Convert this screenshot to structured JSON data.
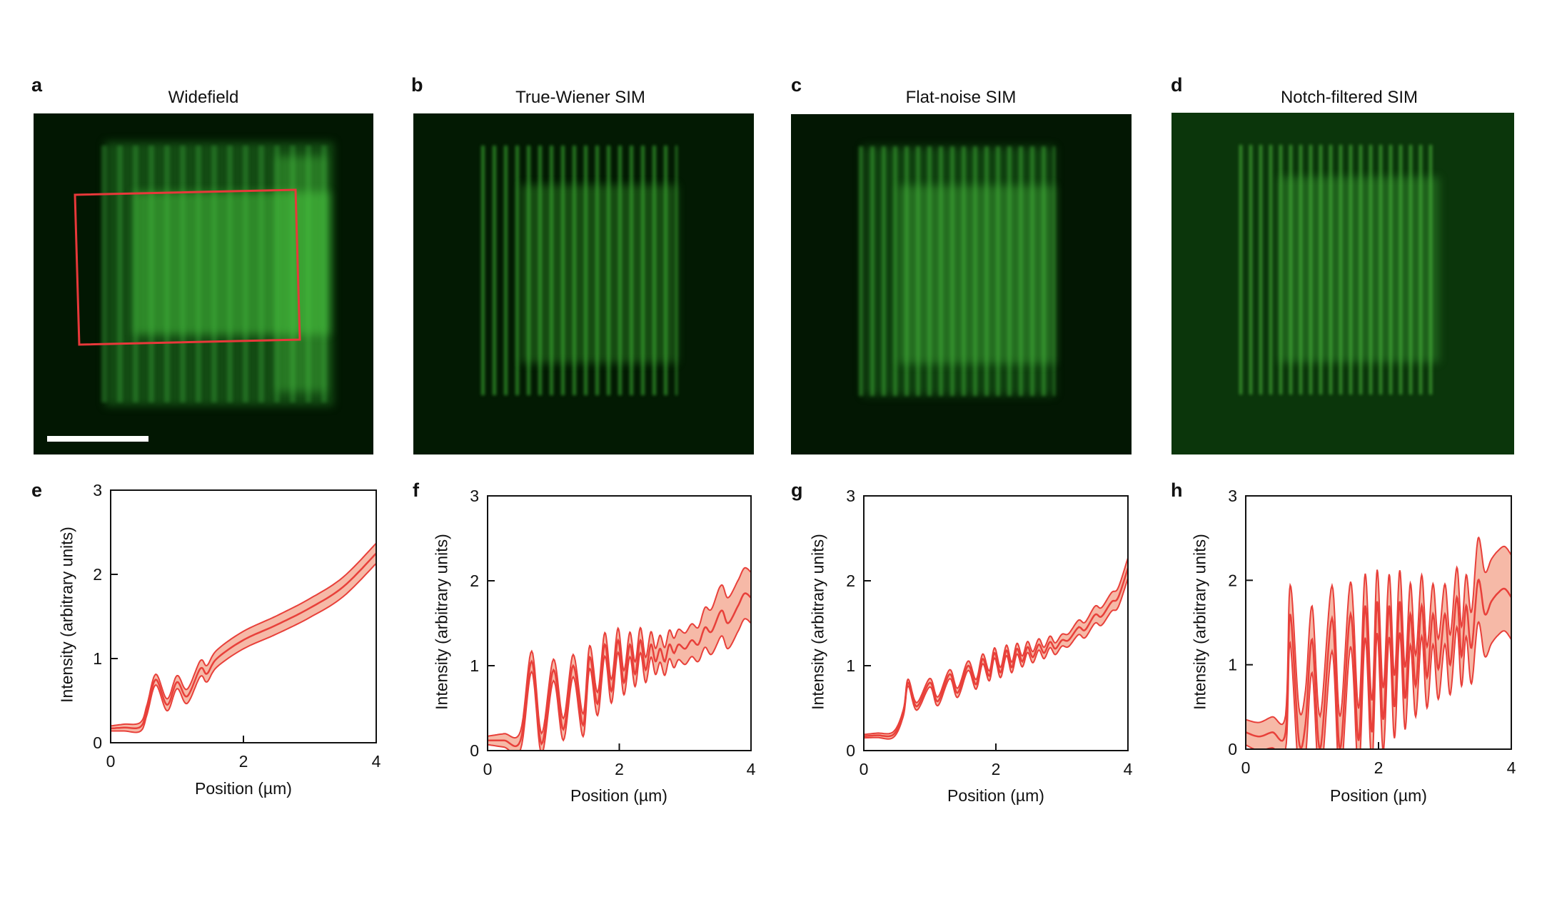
{
  "panels": [
    {
      "letter": "a",
      "title": "Widefield"
    },
    {
      "letter": "b",
      "title": "True-Wiener SIM"
    },
    {
      "letter": "c",
      "title": "Flat-noise SIM"
    },
    {
      "letter": "d",
      "title": "Notch-filtered SIM"
    }
  ],
  "colors": {
    "line": "#e8403a",
    "band": "#f6b9a7",
    "roi": "#e8383a",
    "signal": "#3fcf3a"
  },
  "chart_data": [
    {
      "letter": "e",
      "type": "line",
      "xlabel": "Position (µm)",
      "ylabel": "Intensity (arbitrary units)",
      "xlim": [
        0,
        4
      ],
      "ylim": [
        0,
        3
      ],
      "xticks": [
        "0",
        "2",
        "4"
      ],
      "yticks": [
        "0",
        "1",
        "2",
        "3"
      ],
      "grid": false,
      "mean": [
        [
          0,
          0.17
        ],
        [
          0.2,
          0.18
        ],
        [
          0.45,
          0.19
        ],
        [
          0.55,
          0.4
        ],
        [
          0.68,
          0.75
        ],
        [
          0.85,
          0.45
        ],
        [
          1.0,
          0.72
        ],
        [
          1.15,
          0.55
        ],
        [
          1.35,
          0.88
        ],
        [
          1.45,
          0.82
        ],
        [
          1.6,
          1.0
        ],
        [
          2.0,
          1.22
        ],
        [
          2.5,
          1.4
        ],
        [
          3.0,
          1.6
        ],
        [
          3.5,
          1.85
        ],
        [
          4.0,
          2.25
        ]
      ],
      "band": [
        [
          0,
          0.03
        ],
        [
          0.6,
          0.06
        ],
        [
          1.5,
          0.1
        ],
        [
          4,
          0.12
        ]
      ]
    },
    {
      "letter": "f",
      "type": "line",
      "xlabel": "Position (µm)",
      "ylabel": "Intensity (arbitrary units)",
      "xlim": [
        0,
        4
      ],
      "ylim": [
        0,
        3
      ],
      "xticks": [
        "0",
        "2",
        "4"
      ],
      "yticks": [
        "0",
        "1",
        "2",
        "3"
      ],
      "grid": false,
      "mean": [
        [
          0,
          0.12
        ],
        [
          0.25,
          0.12
        ],
        [
          0.5,
          0.12
        ],
        [
          0.67,
          1.05
        ],
        [
          0.82,
          0.08
        ],
        [
          1.0,
          0.95
        ],
        [
          1.15,
          0.25
        ],
        [
          1.3,
          1.0
        ],
        [
          1.45,
          0.3
        ],
        [
          1.55,
          1.1
        ],
        [
          1.67,
          0.55
        ],
        [
          1.78,
          1.25
        ],
        [
          1.88,
          0.7
        ],
        [
          1.98,
          1.3
        ],
        [
          2.07,
          0.8
        ],
        [
          2.16,
          1.25
        ],
        [
          2.24,
          0.9
        ],
        [
          2.32,
          1.3
        ],
        [
          2.4,
          0.95
        ],
        [
          2.48,
          1.25
        ],
        [
          2.55,
          1.05
        ],
        [
          2.62,
          1.2
        ],
        [
          2.69,
          1.05
        ],
        [
          2.76,
          1.25
        ],
        [
          2.83,
          1.15
        ],
        [
          2.9,
          1.25
        ],
        [
          3.0,
          1.2
        ],
        [
          3.1,
          1.3
        ],
        [
          3.2,
          1.25
        ],
        [
          3.3,
          1.45
        ],
        [
          3.4,
          1.4
        ],
        [
          3.55,
          1.65
        ],
        [
          3.65,
          1.5
        ],
        [
          3.8,
          1.7
        ],
        [
          3.9,
          1.85
        ],
        [
          4.0,
          1.8
        ]
      ],
      "band": [
        [
          0,
          0.05
        ],
        [
          0.6,
          0.12
        ],
        [
          2.5,
          0.15
        ],
        [
          3.2,
          0.2
        ],
        [
          3.5,
          0.3
        ],
        [
          4,
          0.3
        ]
      ]
    },
    {
      "letter": "g",
      "type": "line",
      "xlabel": "Position (µm)",
      "ylabel": "Intensity (arbitrary units)",
      "xlim": [
        0,
        4
      ],
      "ylim": [
        0,
        3
      ],
      "xticks": [
        "0",
        "2",
        "4"
      ],
      "yticks": [
        "0",
        "1",
        "2",
        "3"
      ],
      "grid": false,
      "mean": [
        [
          0,
          0.17
        ],
        [
          0.2,
          0.18
        ],
        [
          0.45,
          0.19
        ],
        [
          0.6,
          0.45
        ],
        [
          0.67,
          0.8
        ],
        [
          0.8,
          0.52
        ],
        [
          1.0,
          0.8
        ],
        [
          1.12,
          0.58
        ],
        [
          1.3,
          0.9
        ],
        [
          1.42,
          0.68
        ],
        [
          1.58,
          1.0
        ],
        [
          1.7,
          0.78
        ],
        [
          1.8,
          1.08
        ],
        [
          1.9,
          0.88
        ],
        [
          1.98,
          1.15
        ],
        [
          2.07,
          0.92
        ],
        [
          2.16,
          1.18
        ],
        [
          2.24,
          0.98
        ],
        [
          2.32,
          1.2
        ],
        [
          2.4,
          1.05
        ],
        [
          2.48,
          1.22
        ],
        [
          2.56,
          1.1
        ],
        [
          2.65,
          1.25
        ],
        [
          2.73,
          1.15
        ],
        [
          2.82,
          1.28
        ],
        [
          2.9,
          1.2
        ],
        [
          3.0,
          1.3
        ],
        [
          3.1,
          1.3
        ],
        [
          3.25,
          1.45
        ],
        [
          3.35,
          1.42
        ],
        [
          3.5,
          1.6
        ],
        [
          3.6,
          1.58
        ],
        [
          3.75,
          1.75
        ],
        [
          3.85,
          1.8
        ],
        [
          4.0,
          2.15
        ]
      ],
      "band": [
        [
          0,
          0.02
        ],
        [
          1,
          0.05
        ],
        [
          3,
          0.07
        ],
        [
          3.5,
          0.1
        ],
        [
          4,
          0.12
        ]
      ]
    },
    {
      "letter": "h",
      "type": "line",
      "xlabel": "Position (µm)",
      "ylabel": "Intensity (arbitrary units)",
      "xlim": [
        0,
        4
      ],
      "ylim": [
        0,
        3
      ],
      "xticks": [
        "0",
        "2",
        "4"
      ],
      "yticks": [
        "0",
        "1",
        "2",
        "3"
      ],
      "grid": false,
      "mean": [
        [
          0,
          0.2
        ],
        [
          0.2,
          0.15
        ],
        [
          0.4,
          0.2
        ],
        [
          0.6,
          0.2
        ],
        [
          0.67,
          1.6
        ],
        [
          0.8,
          0.1
        ],
        [
          0.9,
          0.3
        ],
        [
          1.0,
          1.3
        ],
        [
          1.12,
          0.0
        ],
        [
          1.3,
          1.55
        ],
        [
          1.42,
          0.0
        ],
        [
          1.58,
          1.6
        ],
        [
          1.7,
          0.1
        ],
        [
          1.8,
          1.7
        ],
        [
          1.9,
          0.2
        ],
        [
          1.98,
          1.75
        ],
        [
          2.07,
          0.35
        ],
        [
          2.16,
          1.7
        ],
        [
          2.24,
          0.5
        ],
        [
          2.32,
          1.75
        ],
        [
          2.4,
          0.6
        ],
        [
          2.48,
          1.6
        ],
        [
          2.56,
          0.75
        ],
        [
          2.65,
          1.7
        ],
        [
          2.73,
          0.85
        ],
        [
          2.82,
          1.6
        ],
        [
          2.9,
          0.95
        ],
        [
          3.0,
          1.6
        ],
        [
          3.08,
          1.0
        ],
        [
          3.18,
          1.8
        ],
        [
          3.25,
          1.1
        ],
        [
          3.32,
          1.7
        ],
        [
          3.4,
          1.2
        ],
        [
          3.5,
          2.0
        ],
        [
          3.6,
          1.6
        ],
        [
          3.7,
          1.75
        ],
        [
          3.8,
          1.85
        ],
        [
          3.9,
          1.9
        ],
        [
          4.0,
          1.8
        ]
      ],
      "band": [
        [
          0,
          0.15
        ],
        [
          0.6,
          0.2
        ],
        [
          0.7,
          0.4
        ],
        [
          3.3,
          0.35
        ],
        [
          3.5,
          0.5
        ],
        [
          4,
          0.5
        ]
      ]
    }
  ]
}
